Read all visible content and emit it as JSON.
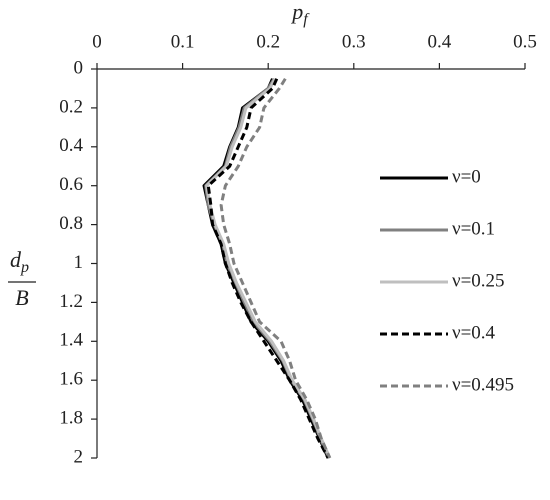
{
  "chart_data": {
    "type": "line",
    "x_label": {
      "main": "p",
      "sub": "f"
    },
    "y_label": {
      "top_main": "d",
      "top_sub": "p",
      "bottom": "B"
    },
    "depth": [
      0.05,
      0.1,
      0.2,
      0.3,
      0.4,
      0.5,
      0.6,
      0.7,
      0.8,
      0.9,
      1.0,
      1.1,
      1.2,
      1.3,
      1.4,
      1.5,
      1.6,
      1.7,
      1.8,
      1.9,
      2.0
    ],
    "series": [
      {
        "name": "ν=0",
        "color": "#000000",
        "dash": false,
        "values": [
          0.205,
          0.2,
          0.17,
          0.165,
          0.155,
          0.148,
          0.125,
          0.13,
          0.135,
          0.145,
          0.15,
          0.16,
          0.17,
          0.18,
          0.2,
          0.215,
          0.225,
          0.24,
          0.25,
          0.26,
          0.27
        ]
      },
      {
        "name": "ν=0.1",
        "color": "#808080",
        "dash": false,
        "values": [
          0.207,
          0.2,
          0.172,
          0.166,
          0.156,
          0.15,
          0.127,
          0.13,
          0.137,
          0.147,
          0.152,
          0.162,
          0.172,
          0.183,
          0.202,
          0.217,
          0.227,
          0.242,
          0.252,
          0.261,
          0.271
        ]
      },
      {
        "name": "ν=0.25",
        "color": "#bfbfbf",
        "dash": false,
        "values": [
          0.208,
          0.202,
          0.174,
          0.168,
          0.158,
          0.151,
          0.128,
          0.132,
          0.138,
          0.148,
          0.154,
          0.163,
          0.174,
          0.185,
          0.204,
          0.218,
          0.228,
          0.243,
          0.253,
          0.262,
          0.272
        ]
      },
      {
        "name": "ν=0.4",
        "color": "#000000",
        "dash": true,
        "values": [
          0.21,
          0.205,
          0.18,
          0.175,
          0.165,
          0.155,
          0.13,
          0.133,
          0.135,
          0.145,
          0.15,
          0.158,
          0.168,
          0.18,
          0.195,
          0.21,
          0.225,
          0.238,
          0.248,
          0.258,
          0.27
        ]
      },
      {
        "name": "ν=0.495",
        "color": "#808080",
        "dash": true,
        "values": [
          0.22,
          0.213,
          0.195,
          0.19,
          0.175,
          0.165,
          0.15,
          0.145,
          0.148,
          0.155,
          0.16,
          0.17,
          0.18,
          0.19,
          0.215,
          0.225,
          0.232,
          0.245,
          0.255,
          0.262,
          0.272
        ]
      }
    ],
    "xlim": [
      0,
      0.5
    ],
    "xticks": [
      0,
      0.1,
      0.2,
      0.3,
      0.4,
      0.5
    ],
    "ylim": [
      0,
      2
    ],
    "yticks": [
      0,
      0.2,
      0.4,
      0.6,
      0.8,
      1,
      1.2,
      1.4,
      1.6,
      1.8,
      2
    ],
    "y_inverted": true,
    "x_axis_top": true
  }
}
